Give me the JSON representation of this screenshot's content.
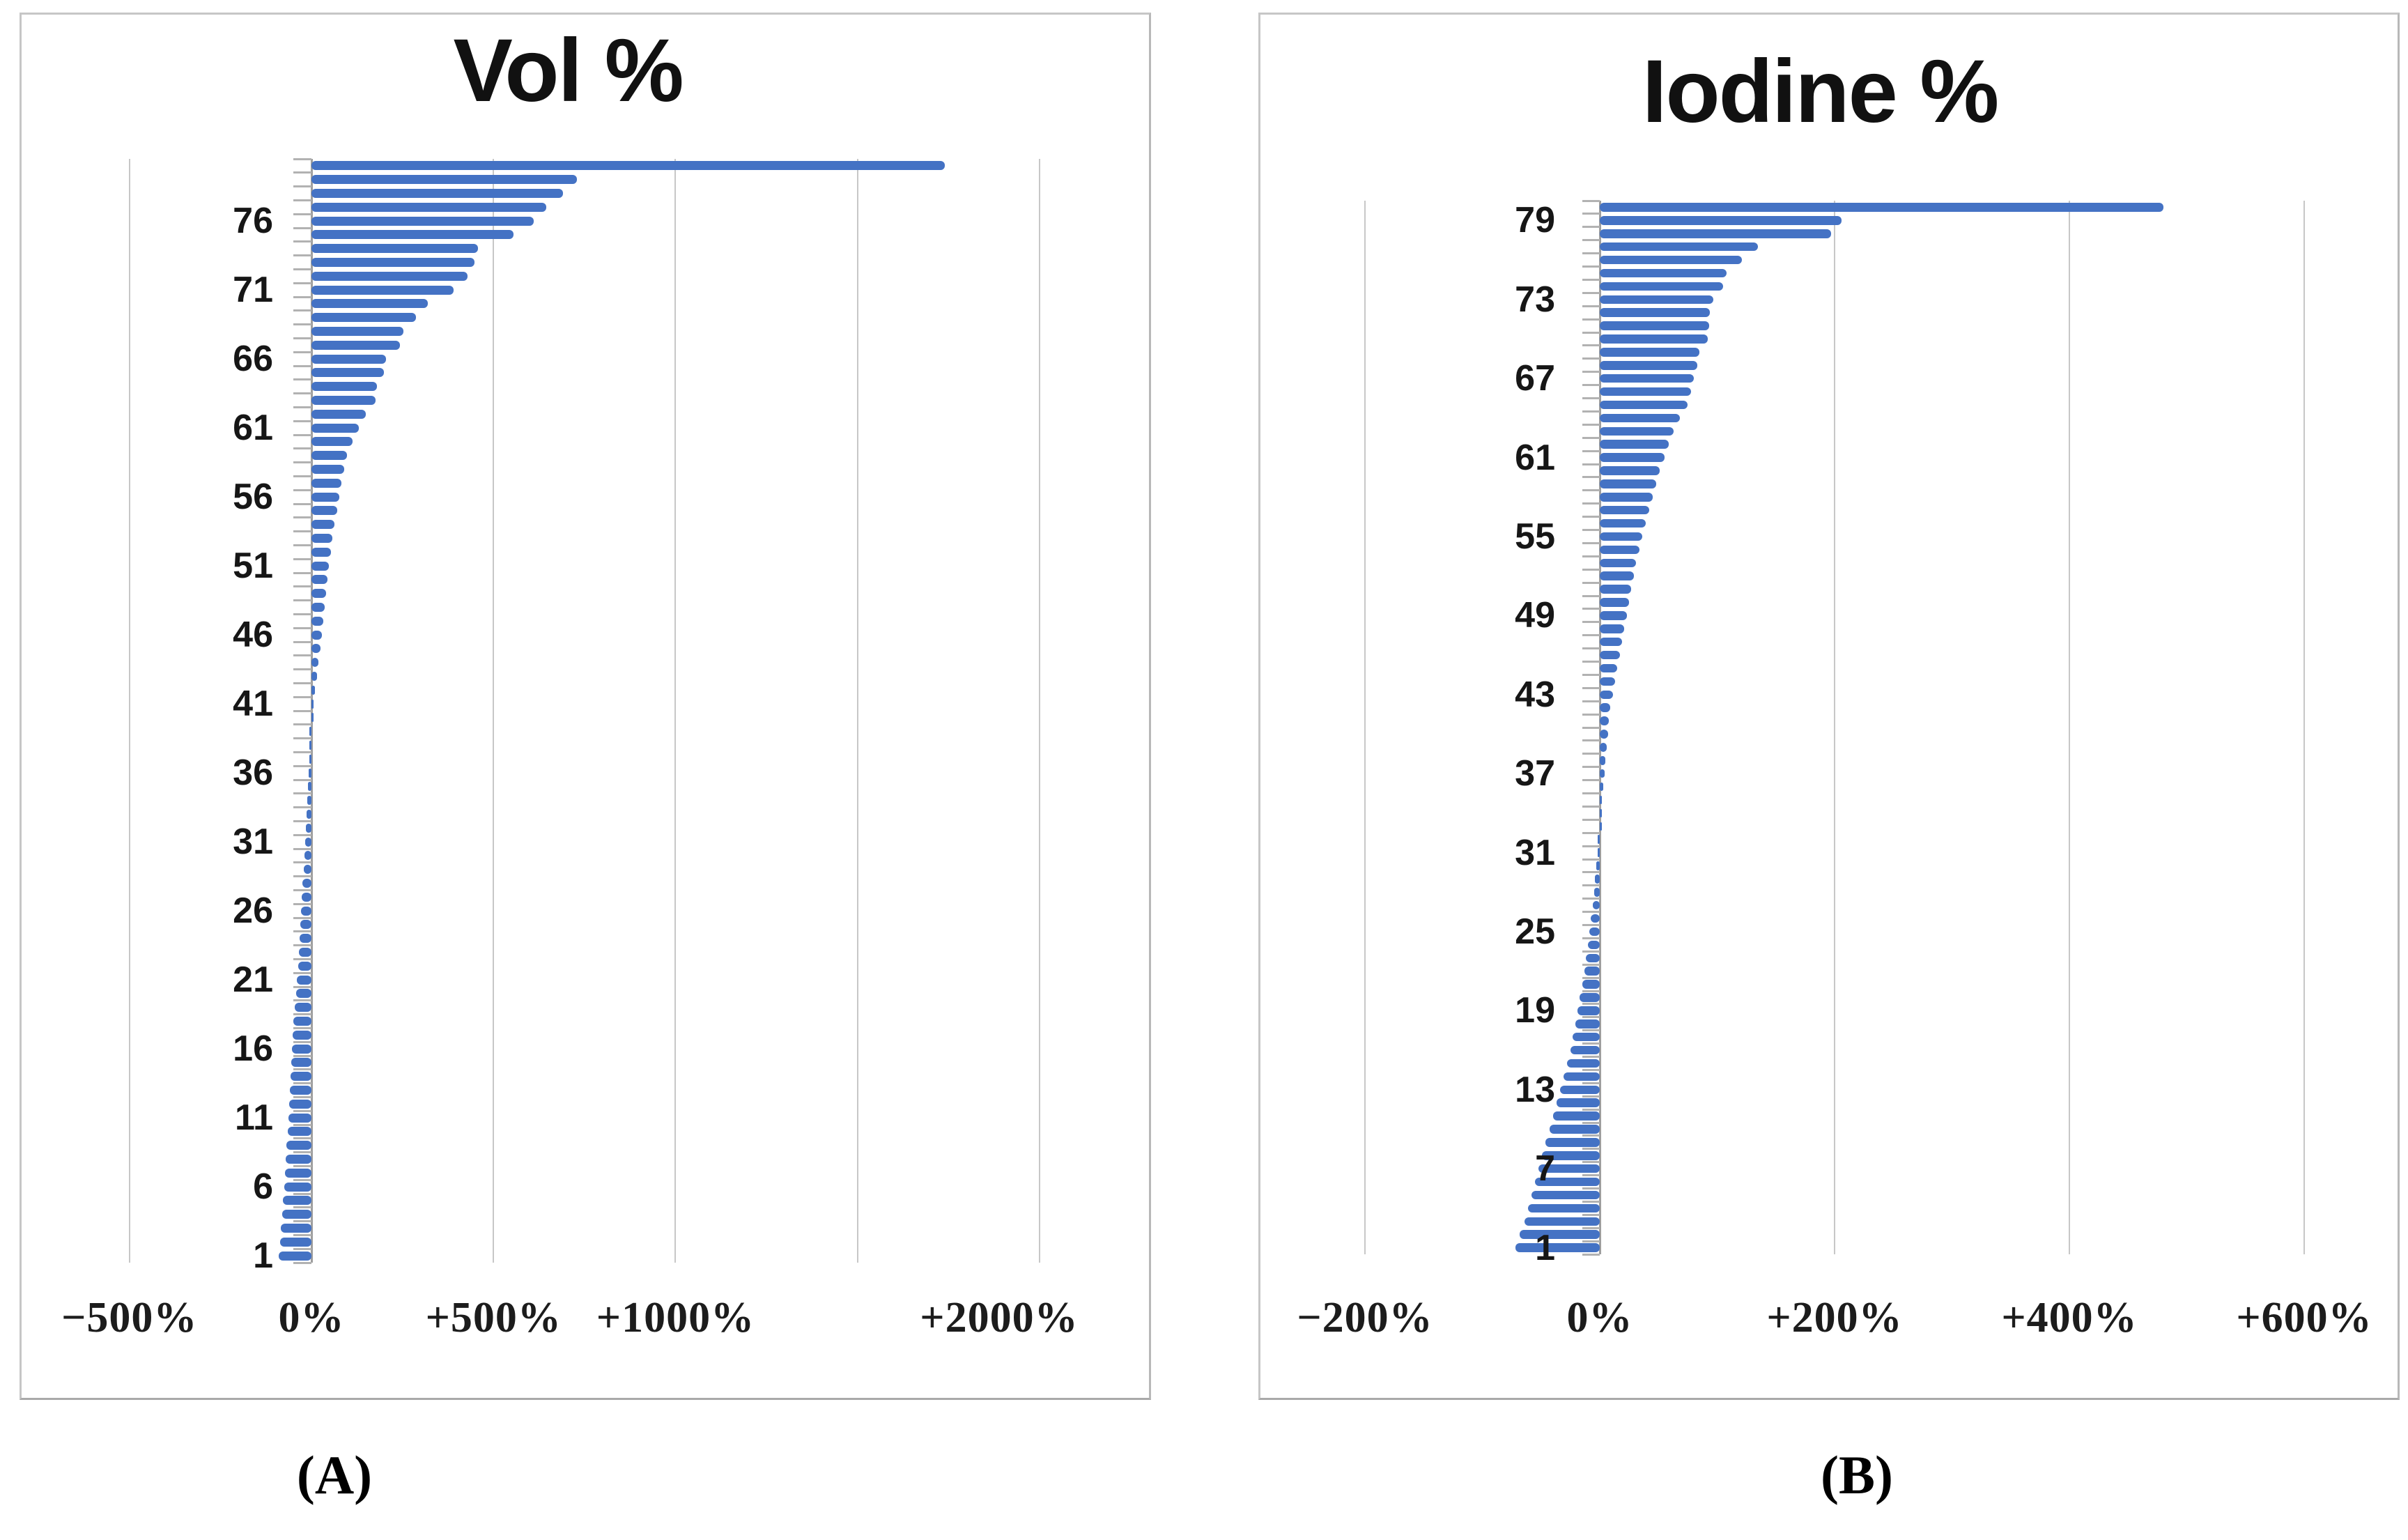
{
  "page": {
    "background": "#ffffff"
  },
  "colors": {
    "bar": "#4472c4",
    "gridline": "#c7c7c7",
    "zero_axis": "#9e9e9e",
    "category_tick": "#b2b2b2",
    "panel_border": "#c6c6c6",
    "text": "#111111"
  },
  "captions": {
    "a": "(A)",
    "b": "(B)"
  },
  "chart_data": [
    {
      "id": "A",
      "type": "bar",
      "orientation": "horizontal",
      "title": "Vol %",
      "legend": "none",
      "grid": "vertical gridlines on",
      "n_categories": 80,
      "category_start": 80,
      "category_end": 1,
      "x_axis": {
        "unit": "percent change",
        "xlim": [
          -500,
          2000
        ],
        "gridline_values": [
          -500,
          0,
          500,
          1000,
          1500,
          2000
        ],
        "tick_values": [
          -500,
          0,
          500,
          1000,
          2000
        ],
        "tick_labels": [
          "−500%",
          "0%",
          "+500%",
          "+1000%",
          "+2000%"
        ]
      },
      "y_axis": {
        "tick_values": [
          76,
          71,
          66,
          61,
          56,
          51,
          46,
          41,
          36,
          31,
          26,
          21,
          16,
          11,
          6,
          1
        ],
        "tick_labels": [
          "76",
          "71",
          "66",
          "61",
          "56",
          "51",
          "46",
          "41",
          "36",
          "31",
          "26",
          "21",
          "16",
          "11",
          "6",
          "1"
        ]
      },
      "values_top_to_bottom": [
        1740,
        730,
        690,
        645,
        610,
        555,
        458,
        448,
        428,
        390,
        320,
        287,
        252,
        243,
        205,
        200,
        180,
        176,
        150,
        130,
        112,
        98,
        90,
        83,
        76,
        70,
        64,
        58,
        53,
        48,
        44,
        40,
        36,
        32,
        28,
        24,
        20,
        15,
        10,
        5,
        0,
        -2,
        -4,
        -6,
        -8,
        -10,
        -12,
        -14,
        -16,
        -18,
        -20,
        -22,
        -24,
        -26,
        -28,
        -30,
        -32,
        -34,
        -37,
        -40,
        -43,
        -46,
        -49,
        -52,
        -54,
        -56,
        -58,
        -60,
        -62,
        -64,
        -66,
        -68,
        -70,
        -72,
        -75,
        -78,
        -81,
        -84,
        -87,
        -90
      ]
    },
    {
      "id": "B",
      "type": "bar",
      "orientation": "horizontal",
      "title": "Iodine %",
      "legend": "none",
      "grid": "vertical gridlines on",
      "n_categories": 80,
      "category_start": 80,
      "category_end": 1,
      "x_axis": {
        "unit": "percent change",
        "xlim": [
          -200,
          600
        ],
        "gridline_values": [
          -200,
          0,
          200,
          400,
          600
        ],
        "tick_values": [
          -200,
          0,
          200,
          400,
          600
        ],
        "tick_labels": [
          "−200%",
          "0%",
          "+200%",
          "+400%",
          "+600%"
        ]
      },
      "y_axis": {
        "tick_values": [
          79,
          73,
          67,
          61,
          55,
          49,
          43,
          37,
          31,
          25,
          19,
          13,
          7,
          1
        ],
        "tick_labels": [
          "79",
          "73",
          "67",
          "61",
          "55",
          "49",
          "43",
          "37",
          "31",
          "25",
          "19",
          "13",
          "7",
          "1"
        ]
      },
      "values_top_to_bottom": [
        480,
        206,
        197,
        135,
        121,
        108,
        105,
        97,
        94,
        93,
        92,
        85,
        83,
        80,
        78,
        75,
        68,
        63,
        59,
        55,
        51,
        48,
        45,
        42,
        39,
        36,
        34,
        31,
        29,
        27,
        25,
        23,
        21,
        19,
        17,
        15,
        13,
        11,
        9,
        8,
        7,
        6,
        5,
        4,
        3,
        2,
        1,
        0,
        -1,
        -2,
        -3,
        -4,
        -5,
        -6,
        -8,
        -9,
        -10,
        -12,
        -13,
        -15,
        -17,
        -19,
        -21,
        -23,
        -25,
        -28,
        -31,
        -34,
        -37,
        -40,
        -43,
        -46,
        -49,
        -52,
        -55,
        -58,
        -61,
        -64,
        -68,
        -72
      ]
    }
  ]
}
